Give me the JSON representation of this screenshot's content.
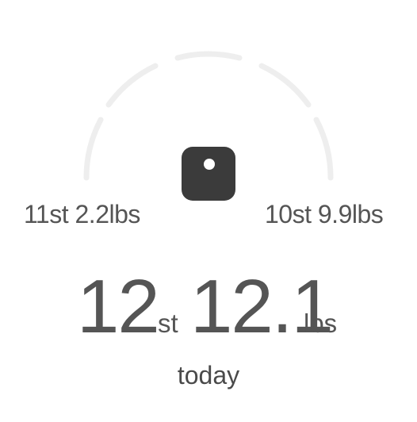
{
  "gauge": {
    "icon": "scale-icon",
    "arc_color": "#eeeeee",
    "icon_color": "#3b3b3b",
    "left_label": "11st 2.2lbs",
    "right_label": "10st 9.9lbs"
  },
  "weight": {
    "stones": "12",
    "stones_unit": "st",
    "pounds": "12.1",
    "pounds_unit": "lbs"
  },
  "period_label": "today"
}
